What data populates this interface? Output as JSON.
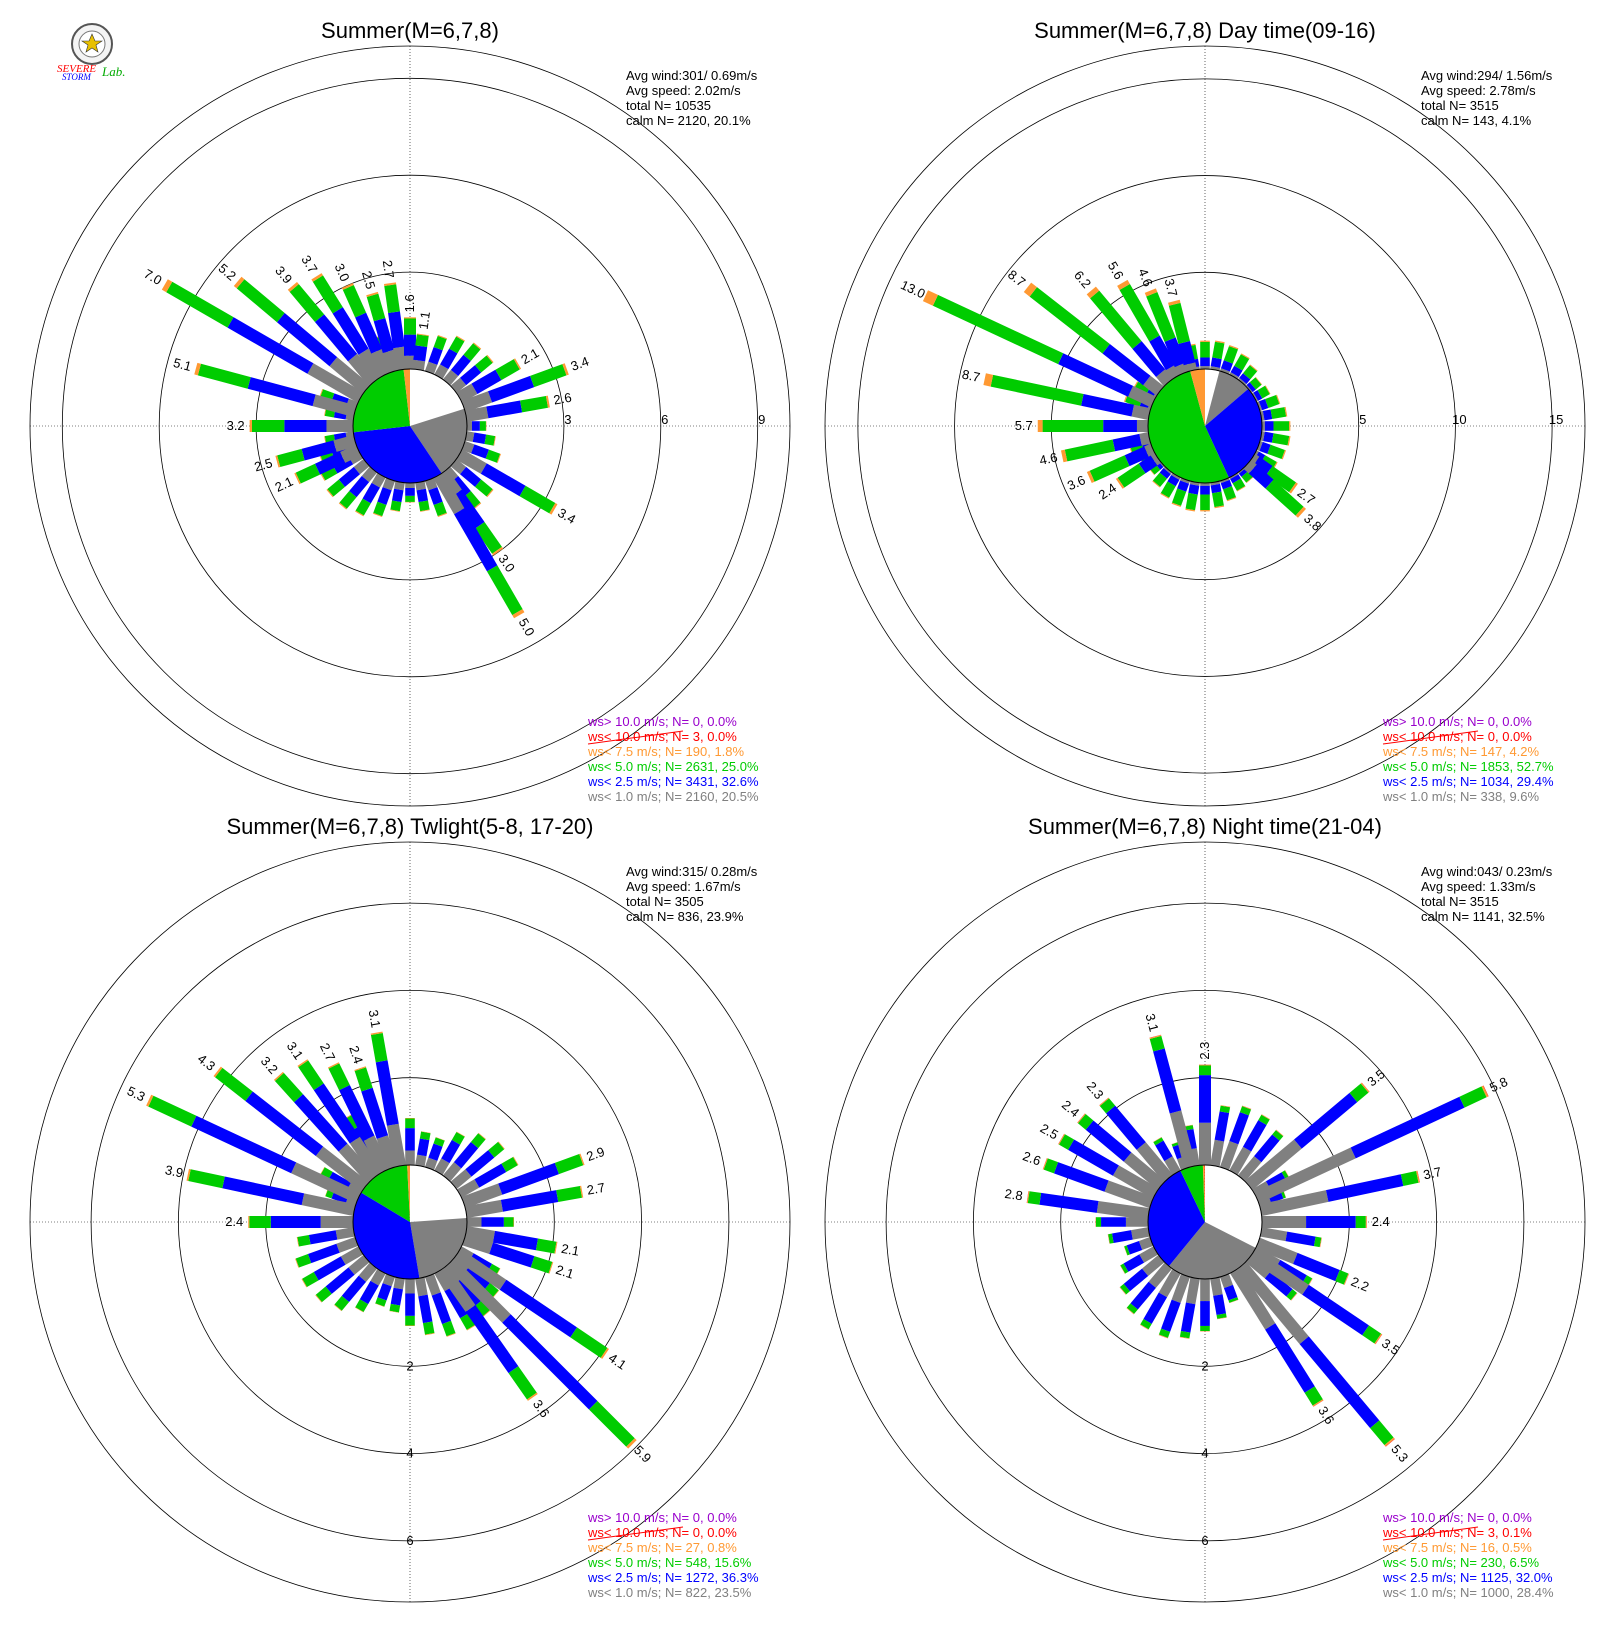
{
  "colors": {
    "gt10": "#9900cc",
    "lt10": "#ff0000",
    "lt7_5": "#ff9933",
    "lt5": "#00cc00",
    "lt2_5": "#0000ff",
    "lt1": "#808080",
    "calm": "#ffffff",
    "grid": "#000000"
  },
  "logo": {
    "top": "SEVERE",
    "bottom": "STORM",
    "lab": "Lab."
  },
  "chart_data": [
    {
      "type": "wind_rose",
      "title": "Summer(M=6,7,8)",
      "stats": [
        "Avg wind:301/ 0.69m/s",
        "Avg speed: 2.02m/s",
        "total N=       10535",
        "calm N=   2120,  20.1%"
      ],
      "ring_labels": [
        "3",
        "6",
        "9"
      ],
      "rmax": 10,
      "ring_values": [
        3,
        6,
        9
      ],
      "ring_label_side": "east",
      "calm_fraction": 20.1,
      "bins_pct": [
        20.5,
        32.6,
        25.0,
        1.8,
        0.0,
        0.0
      ],
      "spokes": [
        {
          "deg": 270,
          "total": 3.2
        },
        {
          "deg": 285,
          "total": 5.1
        },
        {
          "deg": 300,
          "total": 7.0
        },
        {
          "deg": 310,
          "total": 5.2
        },
        {
          "deg": 320,
          "total": 3.9
        },
        {
          "deg": 328,
          "total": 3.7
        },
        {
          "deg": 336,
          "total": 3.0
        },
        {
          "deg": 344,
          "total": 2.5
        },
        {
          "deg": 352,
          "total": 2.7
        },
        {
          "deg": 0,
          "total": 1.6
        },
        {
          "deg": 8,
          "total": 1.1
        },
        {
          "deg": 60,
          "total": 2.1
        },
        {
          "deg": 70,
          "total": 3.4
        },
        {
          "deg": 80,
          "total": 2.6
        },
        {
          "deg": 120,
          "total": 3.4
        },
        {
          "deg": 145,
          "total": 3.0
        },
        {
          "deg": 150,
          "total": 5.0
        },
        {
          "deg": 255,
          "total": 2.5
        },
        {
          "deg": 245,
          "total": 2.1
        }
      ],
      "legend": [
        "ws> 10.0 m/s; N=      0,  0.0%",
        "ws< 10.0 m/s; N=      3,  0.0%",
        "ws<  7.5 m/s; N=    190,  1.8%",
        "ws<  5.0 m/s; N=   2631, 25.0%",
        "ws<  2.5 m/s; N=   3431, 32.6%",
        "ws<  1.0 m/s; N=   2160, 20.5%"
      ]
    },
    {
      "type": "wind_rose",
      "title": "Summer(M=6,7,8) Day time(09-16)",
      "stats": [
        "Avg wind:294/ 1.56m/s",
        "Avg speed: 2.78m/s",
        "total N=        3515",
        "calm N=    143,   4.1%"
      ],
      "ring_labels": [
        "5",
        "10",
        "15"
      ],
      "rmax": 16.7,
      "ring_values": [
        5,
        10,
        15
      ],
      "ring_label_side": "east",
      "calm_fraction": 4.1,
      "bins_pct": [
        9.6,
        29.4,
        52.7,
        4.2,
        0.0,
        0.0
      ],
      "spokes": [
        {
          "deg": 270,
          "total": 5.7
        },
        {
          "deg": 282,
          "total": 8.7
        },
        {
          "deg": 295,
          "total": 13.0
        },
        {
          "deg": 308,
          "total": 8.7
        },
        {
          "deg": 320,
          "total": 6.2
        },
        {
          "deg": 330,
          "total": 5.6
        },
        {
          "deg": 338,
          "total": 4.6
        },
        {
          "deg": 346,
          "total": 3.7
        },
        {
          "deg": 258,
          "total": 4.6
        },
        {
          "deg": 246,
          "total": 3.6
        },
        {
          "deg": 236,
          "total": 2.4
        },
        {
          "deg": 125,
          "total": 2.7
        },
        {
          "deg": 132,
          "total": 3.8
        }
      ],
      "legend": [
        "ws> 10.0 m/s; N=      0,  0.0%",
        "ws< 10.0 m/s; N=      0,  0.0%",
        "ws<  7.5 m/s; N=    147,  4.2%",
        "ws<  5.0 m/s; N=   1853, 52.7%",
        "ws<  2.5 m/s; N=   1034, 29.4%",
        "ws<  1.0 m/s; N=    338,  9.6%"
      ]
    },
    {
      "type": "wind_rose",
      "title": "Summer(M=6,7,8) Twlight(5-8, 17-20)",
      "stats": [
        "Avg wind:315/ 0.28m/s",
        "Avg speed: 1.67m/s",
        "total N=        3505",
        "calm N=    836,  23.9%"
      ],
      "ring_labels": [
        "2",
        "4",
        "6"
      ],
      "rmax": 7.4,
      "ring_values": [
        2,
        4,
        6
      ],
      "ring_label_side": "south",
      "calm_fraction": 23.9,
      "bins_pct": [
        23.5,
        36.3,
        15.6,
        0.8,
        0.0,
        0.0
      ],
      "spokes": [
        {
          "deg": 270,
          "total": 2.4
        },
        {
          "deg": 282,
          "total": 3.9
        },
        {
          "deg": 295,
          "total": 5.3
        },
        {
          "deg": 308,
          "total": 4.3
        },
        {
          "deg": 318,
          "total": 3.2
        },
        {
          "deg": 326,
          "total": 3.1
        },
        {
          "deg": 334,
          "total": 2.7
        },
        {
          "deg": 342,
          "total": 2.4
        },
        {
          "deg": 350,
          "total": 3.1
        },
        {
          "deg": 70,
          "total": 2.9
        },
        {
          "deg": 80,
          "total": 2.7
        },
        {
          "deg": 100,
          "total": 2.1
        },
        {
          "deg": 108,
          "total": 2.1
        },
        {
          "deg": 124,
          "total": 4.1
        },
        {
          "deg": 145,
          "total": 3.6
        },
        {
          "deg": 135,
          "total": 5.9
        }
      ],
      "legend": [
        "ws> 10.0 m/s; N=      0,  0.0%",
        "ws< 10.0 m/s; N=      0,  0.0%",
        "ws<  7.5 m/s; N=     27,  0.8%",
        "ws<  5.0 m/s; N=    548, 15.6%",
        "ws<  2.5 m/s; N=   1272, 36.3%",
        "ws<  1.0 m/s; N=    822, 23.5%"
      ]
    },
    {
      "type": "wind_rose",
      "title": "Summer(M=6,7,8) Night time(21-04)",
      "stats": [
        "Avg wind:043/ 0.23m/s",
        "Avg speed: 1.33m/s",
        "total N=        3515",
        "calm N=   1141,  32.5%"
      ],
      "ring_labels": [
        "2",
        "4",
        "6"
      ],
      "rmax": 7.4,
      "ring_values": [
        2,
        4,
        6
      ],
      "ring_label_side": "south",
      "calm_fraction": 32.5,
      "bins_pct": [
        28.4,
        32.0,
        6.5,
        0.5,
        0.1,
        0.0
      ],
      "spokes": [
        {
          "deg": 278,
          "total": 2.8
        },
        {
          "deg": 290,
          "total": 2.6
        },
        {
          "deg": 300,
          "total": 2.5
        },
        {
          "deg": 310,
          "total": 2.4
        },
        {
          "deg": 320,
          "total": 2.3
        },
        {
          "deg": 345,
          "total": 3.1
        },
        {
          "deg": 0,
          "total": 2.3
        },
        {
          "deg": 50,
          "total": 3.5
        },
        {
          "deg": 65,
          "total": 5.8
        },
        {
          "deg": 78,
          "total": 3.7
        },
        {
          "deg": 90,
          "total": 2.4
        },
        {
          "deg": 112,
          "total": 2.2
        },
        {
          "deg": 124,
          "total": 3.5
        },
        {
          "deg": 148,
          "total": 3.6
        },
        {
          "deg": 140,
          "total": 5.3
        }
      ],
      "legend": [
        "ws> 10.0 m/s; N=      0,  0.0%",
        "ws< 10.0 m/s; N=      3,  0.1%",
        "ws<  7.5 m/s; N=     16,  0.5%",
        "ws<  5.0 m/s; N=    230,  6.5%",
        "ws<  2.5 m/s; N=   1125, 32.0%",
        "ws<  1.0 m/s; N=   1000, 28.4%"
      ]
    }
  ]
}
